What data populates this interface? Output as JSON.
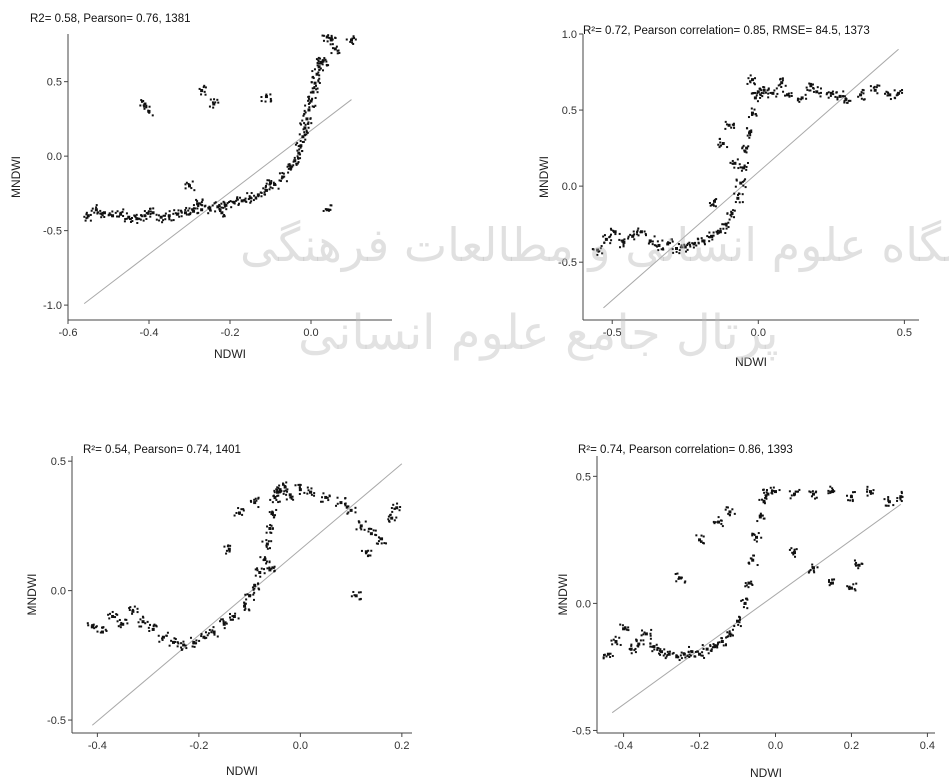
{
  "watermark": {
    "line1": "پژوهشگاه علوم انسانی و مطالعات فرهنگی",
    "line2": "پرتال جامع علوم انسانی"
  },
  "chart_data": [
    {
      "type": "scatter",
      "title": "R2= 0.58, Pearson= 0.76, 1381",
      "xlabel": "NDWI",
      "ylabel": "MNDWI",
      "xlim": [
        -0.6,
        0.2
      ],
      "ylim": [
        -1.1,
        0.82
      ],
      "xticks": [
        -0.6,
        -0.4,
        -0.2,
        0.0
      ],
      "xtick_labels": [
        "-0.6",
        "-0.4",
        "-0.2",
        "0.0"
      ],
      "yticks": [
        -1.0,
        -0.5,
        0.0,
        0.5
      ],
      "ytick_labels": [
        "-1.0",
        "-0.5",
        "0.0",
        "0.5"
      ],
      "reference_line": {
        "x": [
          -0.56,
          0.1
        ],
        "y": [
          -0.99,
          0.38
        ]
      },
      "series": [
        {
          "x": [
            -0.55,
            -0.53,
            -0.51,
            -0.49,
            -0.47,
            -0.45,
            -0.43,
            -0.41,
            -0.39,
            -0.37,
            -0.35,
            -0.33,
            -0.31,
            -0.29,
            -0.27,
            -0.25,
            -0.23,
            -0.21,
            -0.19,
            -0.17,
            -0.15,
            -0.13,
            -0.11,
            -0.09,
            -0.07,
            -0.05,
            -0.04,
            -0.03,
            -0.025,
            -0.02,
            -0.015,
            -0.01,
            -0.005,
            0.0,
            0.005,
            0.01,
            0.015,
            0.02,
            0.025,
            0.03,
            0.04,
            0.05,
            0.06,
            -0.41,
            -0.4,
            -0.27,
            -0.24,
            -0.11,
            -0.3,
            -0.1,
            0.04,
            0.1,
            -0.28,
            -0.22
          ],
          "y": [
            -0.4,
            -0.36,
            -0.38,
            -0.4,
            -0.39,
            -0.41,
            -0.42,
            -0.4,
            -0.38,
            -0.41,
            -0.4,
            -0.39,
            -0.38,
            -0.37,
            -0.36,
            -0.35,
            -0.34,
            -0.33,
            -0.31,
            -0.3,
            -0.28,
            -0.26,
            -0.23,
            -0.19,
            -0.14,
            -0.08,
            -0.03,
            0.02,
            0.07,
            0.13,
            0.19,
            0.25,
            0.31,
            0.37,
            0.43,
            0.49,
            0.55,
            0.6,
            0.63,
            0.64,
            0.8,
            0.78,
            0.72,
            0.35,
            0.3,
            0.44,
            0.35,
            0.4,
            -0.2,
            -0.18,
            -0.36,
            0.78,
            -0.32,
            -0.38
          ]
        }
      ]
    },
    {
      "type": "scatter",
      "title": "R²= 0.72, Pearson correlation= 0.85, RMSE= 84.5, 1373",
      "xlabel": "NDWI",
      "ylabel": "MNDWI",
      "xlim": [
        -0.6,
        0.55
      ],
      "ylim": [
        -0.88,
        1.0
      ],
      "xticks": [
        -0.5,
        0.0,
        0.5
      ],
      "xtick_labels": [
        "-0.5",
        "0.0",
        "0.5"
      ],
      "yticks": [
        -0.5,
        0.0,
        0.5,
        1.0
      ],
      "ytick_labels": [
        "-0.5",
        "0.0",
        "0.5",
        "1.0"
      ],
      "reference_line": {
        "x": [
          -0.53,
          0.48
        ],
        "y": [
          -0.8,
          0.9
        ]
      },
      "series": [
        {
          "x": [
            -0.55,
            -0.52,
            -0.49,
            -0.46,
            -0.43,
            -0.4,
            -0.37,
            -0.34,
            -0.31,
            -0.28,
            -0.25,
            -0.22,
            -0.19,
            -0.16,
            -0.13,
            -0.11,
            -0.09,
            -0.07,
            -0.06,
            -0.05,
            -0.04,
            -0.03,
            -0.02,
            -0.01,
            0.0,
            0.02,
            0.05,
            0.1,
            0.15,
            0.2,
            0.25,
            0.3,
            0.35,
            0.4,
            0.45,
            0.48,
            -0.12,
            -0.1,
            -0.15,
            -0.08,
            -0.02,
            0.08,
            0.18,
            0.28
          ],
          "y": [
            -0.42,
            -0.35,
            -0.3,
            -0.37,
            -0.33,
            -0.3,
            -0.36,
            -0.39,
            -0.38,
            -0.41,
            -0.4,
            -0.38,
            -0.36,
            -0.33,
            -0.3,
            -0.25,
            -0.18,
            -0.08,
            0.02,
            0.12,
            0.25,
            0.35,
            0.48,
            0.58,
            0.62,
            0.63,
            0.61,
            0.6,
            0.58,
            0.62,
            0.61,
            0.57,
            0.6,
            0.63,
            0.6,
            0.61,
            0.28,
            0.4,
            -0.1,
            0.15,
            0.7,
            0.68,
            0.66,
            0.59
          ]
        }
      ]
    },
    {
      "type": "scatter",
      "title": "R²= 0.54, Pearson= 0.74, 1401",
      "xlabel": "NDWI",
      "ylabel": "MNDWI",
      "xlim": [
        -0.45,
        0.22
      ],
      "ylim": [
        -0.55,
        0.52
      ],
      "xticks": [
        -0.4,
        -0.2,
        0.0,
        0.2
      ],
      "xtick_labels": [
        "-0.4",
        "-0.2",
        "0.0",
        "0.2"
      ],
      "yticks": [
        -0.5,
        0.0,
        0.5
      ],
      "ytick_labels": [
        "-0.5",
        "0.0",
        "0.5"
      ],
      "reference_line": {
        "x": [
          -0.41,
          0.2
        ],
        "y": [
          -0.52,
          0.49
        ]
      },
      "series": [
        {
          "x": [
            -0.41,
            -0.39,
            -0.37,
            -0.35,
            -0.33,
            -0.31,
            -0.29,
            -0.27,
            -0.25,
            -0.23,
            -0.21,
            -0.19,
            -0.17,
            -0.15,
            -0.13,
            -0.11,
            -0.1,
            -0.09,
            -0.08,
            -0.07,
            -0.065,
            -0.06,
            -0.055,
            -0.05,
            -0.045,
            -0.04,
            -0.03,
            -0.02,
            0.0,
            0.02,
            0.05,
            0.08,
            0.1,
            0.12,
            0.14,
            0.16,
            0.18,
            0.19,
            -0.12,
            -0.14,
            -0.09,
            -0.06,
            0.11,
            0.13
          ],
          "y": [
            -0.14,
            -0.16,
            -0.1,
            -0.13,
            -0.08,
            -0.12,
            -0.15,
            -0.18,
            -0.2,
            -0.21,
            -0.2,
            -0.18,
            -0.16,
            -0.13,
            -0.1,
            -0.06,
            -0.02,
            0.02,
            0.07,
            0.12,
            0.18,
            0.24,
            0.3,
            0.36,
            0.38,
            0.39,
            0.4,
            0.37,
            0.39,
            0.38,
            0.36,
            0.34,
            0.31,
            0.25,
            0.22,
            0.2,
            0.28,
            0.32,
            0.3,
            0.16,
            0.34,
            0.08,
            -0.02,
            0.15
          ]
        }
      ]
    },
    {
      "type": "scatter",
      "title": "R²= 0.74, Pearson correlation= 0.86, 1393",
      "xlabel": "NDWI",
      "ylabel": "MNDWI",
      "xlim": [
        -0.47,
        0.42
      ],
      "ylim": [
        -0.51,
        0.58
      ],
      "xticks": [
        -0.4,
        -0.2,
        0.0,
        0.2,
        0.4
      ],
      "xtick_labels": [
        "-0.4",
        "-0.2",
        "0.0",
        "0.2",
        "0.4"
      ],
      "yticks": [
        -0.5,
        0.0,
        0.5
      ],
      "ytick_labels": [
        "-0.5",
        "0.0",
        "0.5"
      ],
      "reference_line": {
        "x": [
          -0.43,
          0.33
        ],
        "y": [
          -0.43,
          0.39
        ]
      },
      "series": [
        {
          "x": [
            -0.44,
            -0.42,
            -0.4,
            -0.38,
            -0.36,
            -0.34,
            -0.32,
            -0.3,
            -0.28,
            -0.26,
            -0.24,
            -0.22,
            -0.2,
            -0.18,
            -0.16,
            -0.14,
            -0.12,
            -0.1,
            -0.08,
            -0.07,
            -0.06,
            -0.05,
            -0.04,
            -0.03,
            -0.02,
            0.0,
            0.05,
            0.1,
            0.15,
            0.2,
            0.25,
            0.3,
            0.33,
            -0.25,
            -0.2,
            -0.15,
            -0.12,
            0.05,
            0.1,
            0.15,
            0.2,
            0.22
          ],
          "y": [
            -0.2,
            -0.15,
            -0.1,
            -0.18,
            -0.16,
            -0.12,
            -0.17,
            -0.19,
            -0.2,
            -0.21,
            -0.2,
            -0.19,
            -0.2,
            -0.18,
            -0.17,
            -0.15,
            -0.12,
            -0.07,
            0.0,
            0.08,
            0.17,
            0.26,
            0.34,
            0.4,
            0.43,
            0.44,
            0.43,
            0.43,
            0.44,
            0.42,
            0.44,
            0.4,
            0.42,
            0.1,
            0.25,
            0.32,
            0.36,
            0.2,
            0.14,
            0.08,
            0.06,
            0.15
          ]
        }
      ]
    }
  ]
}
